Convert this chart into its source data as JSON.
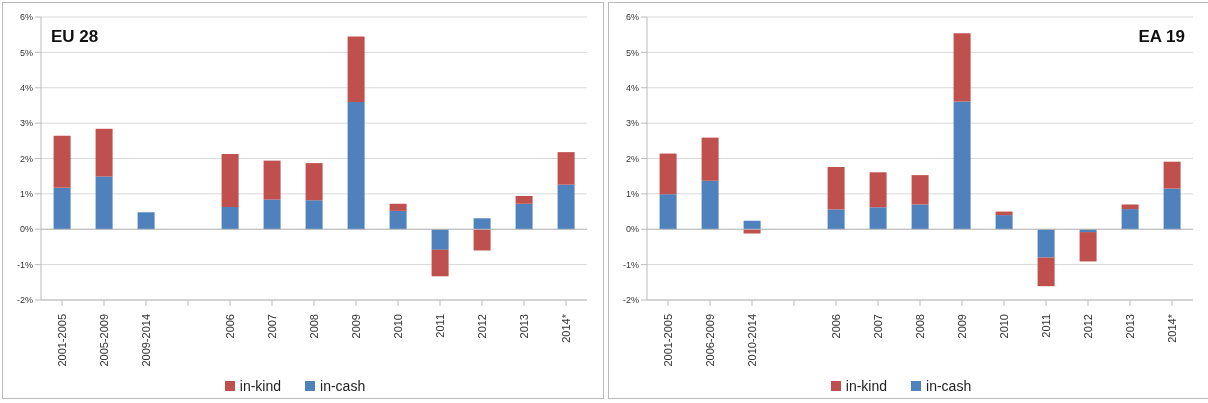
{
  "chart_data": [
    {
      "type": "bar",
      "title": "EU 28",
      "categories": [
        "2001-2005",
        "2005-2009",
        "2009-2014",
        null,
        "2006",
        "2007",
        "2008",
        "2009",
        "2010",
        "2011",
        "2012",
        "2013",
        "2014*"
      ],
      "stacked": true,
      "series": [
        {
          "name": "in-cash",
          "color": "#4f81bd",
          "values": [
            1.17,
            1.49,
            0.48,
            null,
            0.63,
            0.84,
            0.82,
            3.6,
            0.52,
            -0.58,
            0.31,
            0.72,
            1.26
          ]
        },
        {
          "name": "in-kind",
          "color": "#c0504d",
          "values": [
            1.47,
            1.35,
            0,
            null,
            1.5,
            1.1,
            1.05,
            1.85,
            0.2,
            -0.75,
            -0.6,
            0.22,
            0.92
          ]
        }
      ],
      "ylim": [
        -2,
        6
      ],
      "yticks": [
        {
          "value": -2,
          "label": "-2%"
        },
        {
          "value": -1,
          "label": "-1%"
        },
        {
          "value": 0,
          "label": "0%"
        },
        {
          "value": 1,
          "label": "1%"
        },
        {
          "value": 2,
          "label": "2%"
        },
        {
          "value": 3,
          "label": "3%"
        },
        {
          "value": 4,
          "label": "4%"
        },
        {
          "value": 5,
          "label": "5%"
        },
        {
          "value": 6,
          "label": "6%"
        }
      ],
      "grid": "y",
      "legend": "bottom"
    },
    {
      "type": "bar",
      "title": "EA 19",
      "categories": [
        "2001-2005",
        "2006-2009",
        "2010-2014",
        null,
        "2006",
        "2007",
        "2008",
        "2009",
        "2010",
        "2011",
        "2012",
        "2013",
        "2014*"
      ],
      "stacked": true,
      "series": [
        {
          "name": "in-cash",
          "color": "#4f81bd",
          "values": [
            0.99,
            1.37,
            0.24,
            null,
            0.56,
            0.62,
            0.7,
            3.61,
            0.4,
            -0.8,
            -0.08,
            0.57,
            1.15
          ]
        },
        {
          "name": "in-kind",
          "color": "#c0504d",
          "values": [
            1.15,
            1.22,
            -0.12,
            null,
            1.2,
            0.99,
            0.83,
            1.93,
            0.1,
            -0.81,
            -0.83,
            0.13,
            0.76
          ]
        }
      ],
      "ylim": [
        -2,
        6
      ],
      "yticks": [
        {
          "value": -2,
          "label": "-2%"
        },
        {
          "value": -1,
          "label": "-1%"
        },
        {
          "value": 0,
          "label": "0%"
        },
        {
          "value": 1,
          "label": "1%"
        },
        {
          "value": 2,
          "label": "2%"
        },
        {
          "value": 3,
          "label": "3%"
        },
        {
          "value": 4,
          "label": "4%"
        },
        {
          "value": 5,
          "label": "5%"
        },
        {
          "value": 6,
          "label": "6%"
        }
      ],
      "grid": "y",
      "legend": "bottom"
    }
  ]
}
